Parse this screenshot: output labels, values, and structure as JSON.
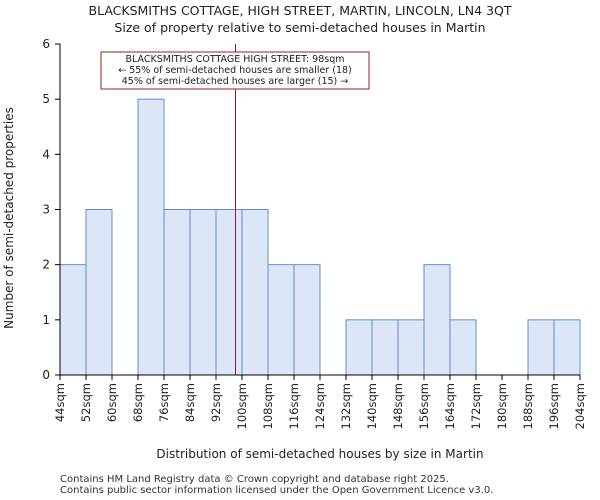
{
  "header": {
    "title": "BLACKSMITHS COTTAGE, HIGH STREET, MARTIN, LINCOLN, LN4 3QT",
    "subtitle": "Size of property relative to semi-detached houses in Martin"
  },
  "footer": {
    "line1": "Contains HM Land Registry data © Crown copyright and database right 2025.",
    "line2": "Contains public sector information licensed under the Open Government Licence v3.0."
  },
  "colors": {
    "bar_fill": "#dce6f6",
    "bar_stroke": "#5b8fd1",
    "marker_line": "#9b1c1c",
    "annotation_border": "#9b1c1c"
  },
  "chart_data": {
    "type": "bar",
    "xlabel": "Distribution of semi-detached houses by size in Martin",
    "ylabel": "Number of semi-detached properties",
    "ylim": [
      0,
      6
    ],
    "yticks": [
      0,
      1,
      2,
      3,
      4,
      5,
      6
    ],
    "grid": false,
    "bin_edges": [
      44,
      52,
      60,
      68,
      76,
      84,
      92,
      100,
      108,
      116,
      124,
      132,
      140,
      148,
      156,
      164,
      172,
      180,
      188,
      196,
      204
    ],
    "tick_labels": [
      "44sqm",
      "52sqm",
      "60sqm",
      "68sqm",
      "76sqm",
      "84sqm",
      "92sqm",
      "100sqm",
      "108sqm",
      "116sqm",
      "124sqm",
      "132sqm",
      "140sqm",
      "148sqm",
      "156sqm",
      "164sqm",
      "172sqm",
      "180sqm",
      "188sqm",
      "196sqm",
      "204sqm"
    ],
    "values": [
      2,
      3,
      0,
      5,
      3,
      3,
      3,
      3,
      2,
      2,
      0,
      1,
      1,
      1,
      2,
      1,
      0,
      0,
      1,
      1
    ],
    "marker_x": 98,
    "annotation": {
      "line1": "BLACKSMITHS COTTAGE HIGH STREET: 98sqm",
      "line2": "← 55% of semi-detached houses are smaller (18)",
      "line3": "45% of semi-detached houses are larger (15) →"
    }
  }
}
